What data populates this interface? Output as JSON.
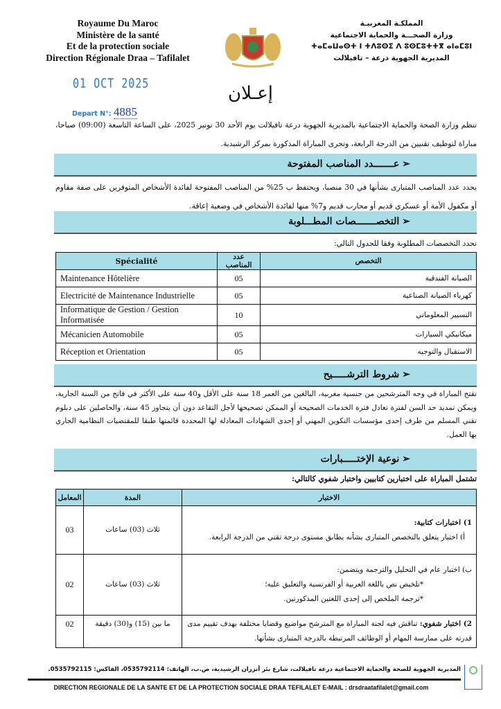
{
  "header": {
    "fr_lines": [
      "Royaume Du Maroc",
      "Ministère de la santé",
      "Et de la protection sociale",
      "Direction Régionale Draa – Tafilalet"
    ],
    "ar_lines": [
      "المملكـة المغربيـة",
      "وزارة الصحـــة والحماية الاجتماعية",
      "ⵜⴰⵎⴰⵡⴰⵙⵜ ⵏ ⵜⴷⵓⵙⵉ ⴷ ⵓⵙⵎⵓⵜⵜⴳ ⴰⵏⴰⵎⵓⵏ",
      "المديرية الجهوية درعة – تافيلالت"
    ],
    "emblem": "moroccan-coat-of-arms"
  },
  "stamp": {
    "date": "01 OCT 2025",
    "depart_label": "Depart N°:",
    "depart_number": "4885"
  },
  "title": "إعـلان",
  "intro": "تنظم وزارة الصحة والحماية الاجتماعية بالمديرية الجهوية درعة تافيلالت يوم الأحد 30 نونبر 2025، على الساعة التاسعة (09:00) صباحا، مباراة لتوظيف تقنيين من الدرجة الرابعة، وتجرى المباراة المذكورة بمركز الرشيدية.",
  "sections": [
    {
      "title": "عـــــــدد المناصب المفتوحة",
      "text": "يحدد عدد المناصب المتبارى بشأنها في 30 منصبا، ويحتفظ ب 25% من المناصب المفتوحة لفائدة الأشخاص المتوفرين على صفة مقاوم أو مكفول الأمة أو عسكري قديم أو محارب قديم و7% منها لفائدة الأشخاص في وضعية إعاقة."
    },
    {
      "title": "التخصـــــــصات المطـــلوبة",
      "text": "تحدد التخصصات المطلوبة وفقا للجدول التالي:"
    },
    {
      "title": "شروط الترشـــــيح",
      "text": "تفتح المباراة في وجه المترشحين من جنسية مغربية، البالغين من العمر 18 سنة على الأقل و40 سنة على الأكثر في فاتح من السنة الجارية، ويمكن تمديد حد السن لفترة تعادل فترة الخدمات الصحيحة أو الممكن تصحيحها لأجل التقاعد دون أن يتجاوز 45 سنة، والحاصلين على دبلوم تقني المسلم من طرف إحدى مؤسسات التكوين المهني أو إحدى الشهادات المعادلة لها المحددة قائمتها طبقا للمقتضيات النظامية الجاري بها العمل."
    },
    {
      "title": "نوعية الإختـــــبارات",
      "text": "تشتمل المباراة على اختبارين كتابيين واختبار شفوي كالتالي:"
    }
  ],
  "specialties_table": {
    "headers": [
      "Spécialité",
      "عدد المناصب",
      "التخصص"
    ],
    "rows": [
      {
        "fr": "Maintenance Hôtelière",
        "count": "05",
        "ar": "الصيانة الفندقية"
      },
      {
        "fr": "Electricité de Maintenance Industrielle",
        "count": "05",
        "ar": "كهرباء الصيانة الصناعية"
      },
      {
        "fr": "Informatique de Gestion / Gestion Informatisée",
        "count": "10",
        "ar": "التسيير المعلوماتي"
      },
      {
        "fr": "Mécanicien Automobile",
        "count": "05",
        "ar": "ميكانيكي السيارات"
      },
      {
        "fr": "Réception et Orientation",
        "count": "05",
        "ar": "الاستقبال والتوجيه"
      }
    ]
  },
  "exams_table": {
    "headers": [
      "المعامل",
      "المدة",
      "الاختبار"
    ],
    "rows": [
      {
        "coef": "03",
        "duration": "ثلاث (03) ساعات",
        "head": "1) اختبارات كتابية:",
        "lines": [
          "أ) اختبار يتعلق بالتخصص المتبارى بشأنه يطابق مستوى درجة تقني من الدرجة الرابعة."
        ]
      },
      {
        "coef": "02",
        "duration": "ثلاث (03) ساعات",
        "head": "ب) اختبار عام في التحليل والترجمة ويتضمن:",
        "lines": [
          "*تلخيص نص باللغة العربية أو الفرنسية والتعليق عليه؛",
          "*ترجمة الملخص إلى إحدى اللغتين المذكورتين."
        ]
      },
      {
        "coef": "02",
        "duration": "ما بين (15) و(30) دقيقة",
        "head": "2) اختبار شفوي:",
        "lines": [
          "تناقش فيه لجنة المباراة مع المترشح مواضيع وقضايا مختلفة بهدف تقييم مدى قدرته على ممارسة المهام أو الوظائف المرتبطة بالدرجة المتبارى بشأنها."
        ]
      }
    ]
  },
  "footer": {
    "ar": "المديرية الجهوية للصحة والحماية الاجتماعية درعة تافيلالت، شارع بئر أنزران الرشيدية، ص.ب، الهاتف: 0535792114، الفاكس: 0535792115.",
    "fr": "DIRECTION REGIONALE DE LA SANTE ET DE LA PROTECTION SOCIALE DRAA TEFILALET E-MAIL : drsdraatafilalet@gmail.com"
  },
  "colors": {
    "section_bar": "#a9dde8",
    "stamp_blue": "#2a7bd0"
  }
}
